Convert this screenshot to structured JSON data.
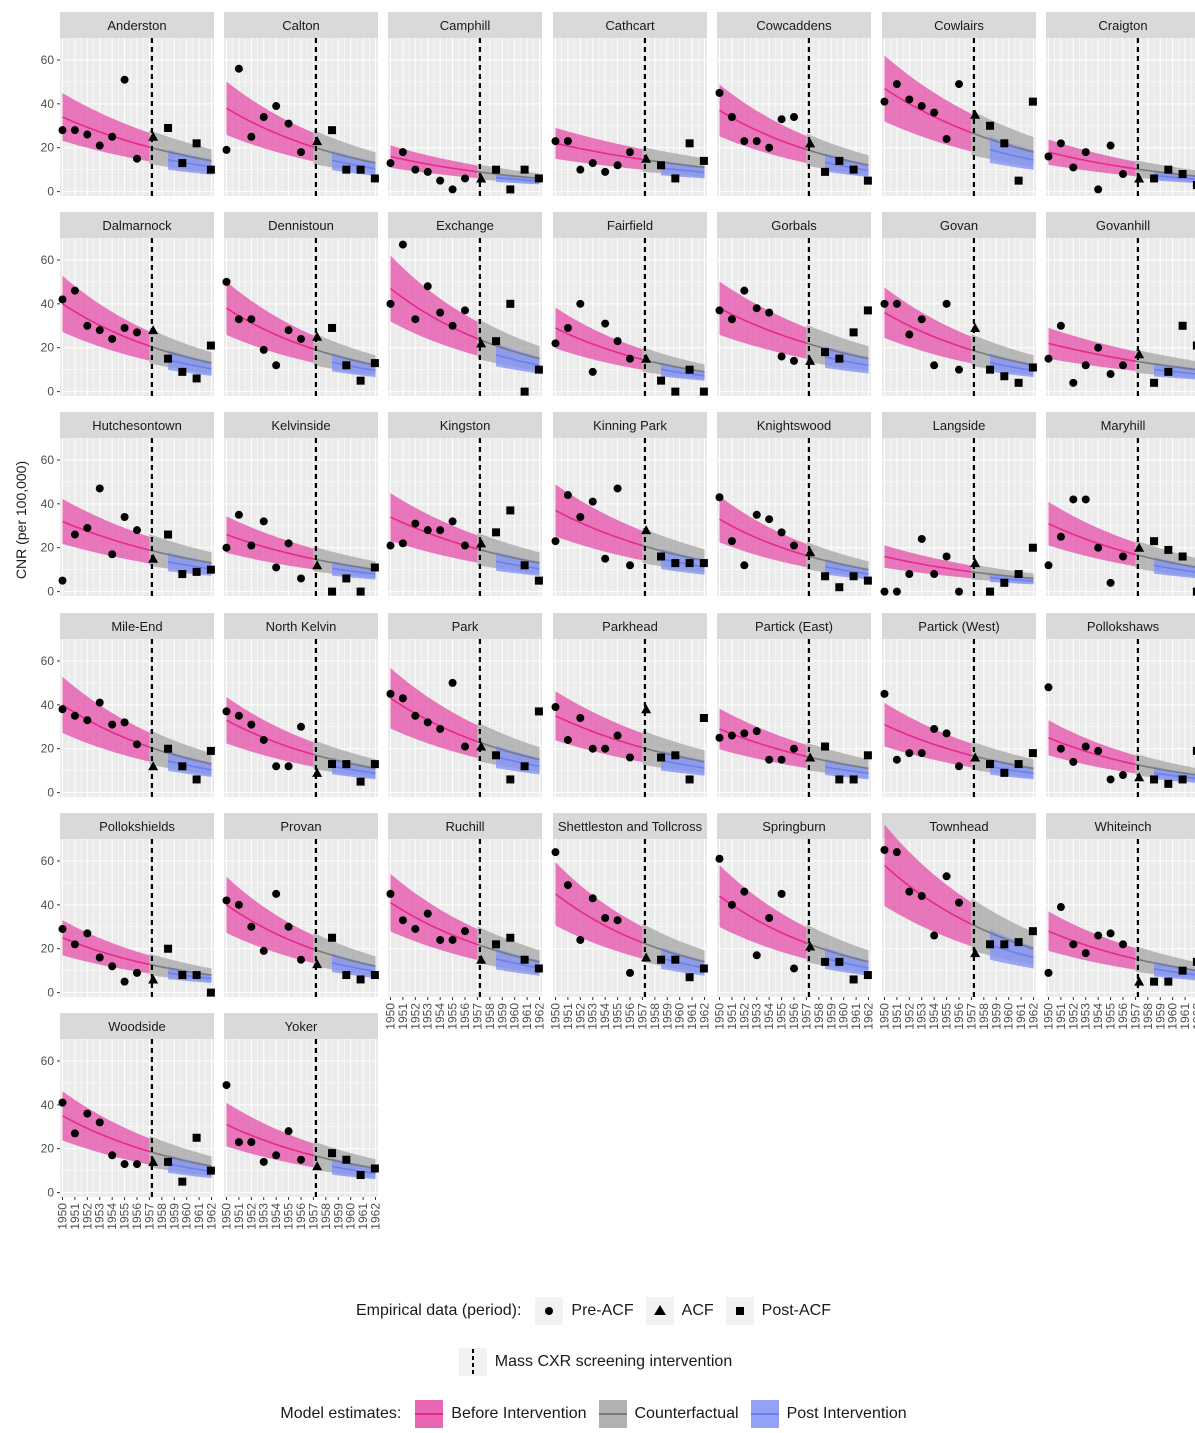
{
  "chart_data": {
    "type": "scatter",
    "ylabel": "CNR (per 100,000)",
    "xlabel": "",
    "ylim": [
      -2,
      70
    ],
    "yticks": [
      0,
      20,
      40,
      60
    ],
    "xlim": [
      1949.8,
      1962.2
    ],
    "xticks": [
      "1950",
      "1951",
      "1952",
      "1953",
      "1954",
      "1955",
      "1956",
      "1957",
      "1958",
      "1959",
      "1960",
      "1961",
      "1962"
    ],
    "intervention_year": 1957.2,
    "colors": {
      "before": "#e7298a",
      "before_band": "#e64ea8",
      "counterfactual": "#8c8c8c",
      "counterfactual_band": "#a6a6a6",
      "post": "#6b7ff0",
      "post_band": "#8394f5",
      "panel_bg": "#ebebeb",
      "strip_bg": "#d9d9d9"
    },
    "panels": [
      {
        "name": "Anderston",
        "pre": [
          28,
          28,
          26,
          21,
          25,
          51,
          15
        ],
        "acf": 25,
        "post": [
          29,
          13,
          22,
          10
        ],
        "m0": 34,
        "m1": 14
      },
      {
        "name": "Calton",
        "pre": [
          19,
          56,
          25,
          34,
          39,
          31,
          18
        ],
        "acf": 23,
        "post": [
          28,
          10,
          10,
          6
        ],
        "m0": 38,
        "m1": 13
      },
      {
        "name": "Camphill",
        "pre": [
          13,
          18,
          10,
          9,
          5,
          1,
          6
        ],
        "acf": 6,
        "post": [
          10,
          1,
          10,
          6
        ],
        "m0": 16,
        "m1": 6
      },
      {
        "name": "Cathcart",
        "pre": [
          23,
          23,
          10,
          13,
          9,
          12,
          18
        ],
        "acf": 15,
        "post": [
          12,
          6,
          22,
          14
        ],
        "m0": 22,
        "m1": 11
      },
      {
        "name": "Cowcaddens",
        "pre": [
          45,
          34,
          23,
          23,
          20,
          33,
          34
        ],
        "acf": 22,
        "post": [
          9,
          14,
          10,
          5
        ],
        "m0": 37,
        "m1": 12
      },
      {
        "name": "Cowlairs",
        "pre": [
          41,
          49,
          42,
          39,
          36,
          24,
          49
        ],
        "acf": 35,
        "post": [
          30,
          22,
          5,
          41
        ],
        "m0": 47,
        "m1": 18
      },
      {
        "name": "Craigton",
        "pre": [
          16,
          22,
          11,
          18,
          1,
          21,
          8
        ],
        "acf": 6,
        "post": [
          6,
          10,
          8,
          3
        ],
        "m0": 18,
        "m1": 7
      },
      {
        "name": "Dalmarnock",
        "pre": [
          42,
          46,
          30,
          28,
          24,
          29,
          27
        ],
        "acf": 28,
        "post": [
          15,
          9,
          6,
          21
        ],
        "m0": 40,
        "m1": 13
      },
      {
        "name": "Dennistoun",
        "pre": [
          50,
          33,
          33,
          19,
          12,
          28,
          24
        ],
        "acf": 25,
        "post": [
          29,
          12,
          5,
          13
        ],
        "m0": 38,
        "m1": 12
      },
      {
        "name": "Exchange",
        "pre": [
          40,
          67,
          33,
          48,
          36,
          30,
          37
        ],
        "acf": 22,
        "post": [
          23,
          40,
          0,
          10
        ],
        "m0": 47,
        "m1": 15
      },
      {
        "name": "Fairfield",
        "pre": [
          22,
          29,
          40,
          9,
          31,
          23,
          15
        ],
        "acf": 15,
        "post": [
          5,
          0,
          10,
          0
        ],
        "m0": 29,
        "m1": 9
      },
      {
        "name": "Gorbals",
        "pre": [
          37,
          33,
          46,
          38,
          36,
          16,
          14
        ],
        "acf": 14,
        "post": [
          18,
          15,
          27,
          37
        ],
        "m0": 38,
        "m1": 15
      },
      {
        "name": "Govan",
        "pre": [
          40,
          40,
          26,
          33,
          12,
          40,
          10
        ],
        "acf": 29,
        "post": [
          10,
          7,
          4,
          11
        ],
        "m0": 36,
        "m1": 12
      },
      {
        "name": "Govanhill",
        "pre": [
          15,
          30,
          4,
          12,
          20,
          8,
          12
        ],
        "acf": 17,
        "post": [
          4,
          9,
          30,
          21
        ],
        "m0": 22,
        "m1": 10
      },
      {
        "name": "Hutchesontown",
        "pre": [
          5,
          26,
          29,
          47,
          17,
          34,
          28
        ],
        "acf": 15,
        "post": [
          26,
          8,
          9,
          10
        ],
        "m0": 32,
        "m1": 13
      },
      {
        "name": "Kelvinside",
        "pre": [
          20,
          35,
          21,
          32,
          11,
          22,
          6
        ],
        "acf": 12,
        "post": [
          0,
          6,
          0,
          11
        ],
        "m0": 26,
        "m1": 10
      },
      {
        "name": "Kingston",
        "pre": [
          21,
          22,
          31,
          28,
          28,
          32,
          21
        ],
        "acf": 22,
        "post": [
          27,
          37,
          12,
          5
        ],
        "m0": 34,
        "m1": 13
      },
      {
        "name": "Kinning Park",
        "pre": [
          23,
          44,
          34,
          41,
          15,
          47,
          12
        ],
        "acf": 28,
        "post": [
          16,
          13,
          13,
          13
        ],
        "m0": 37,
        "m1": 14
      },
      {
        "name": "Knightswood",
        "pre": [
          43,
          23,
          12,
          35,
          33,
          27,
          21
        ],
        "acf": 18,
        "post": [
          7,
          2,
          7,
          5
        ],
        "m0": 33,
        "m1": 10
      },
      {
        "name": "Langside",
        "pre": [
          0,
          0,
          8,
          24,
          8,
          16,
          0
        ],
        "acf": 13,
        "post": [
          0,
          4,
          8,
          20
        ],
        "m0": 16,
        "m1": 6
      },
      {
        "name": "Maryhill",
        "pre": [
          12,
          25,
          42,
          42,
          20,
          4,
          16
        ],
        "acf": 20,
        "post": [
          23,
          19,
          16,
          0
        ],
        "m0": 31,
        "m1": 11
      },
      {
        "name": "Mile-End",
        "pre": [
          38,
          35,
          33,
          41,
          31,
          32,
          22
        ],
        "acf": 12,
        "post": [
          20,
          12,
          6,
          19
        ],
        "m0": 40,
        "m1": 13
      },
      {
        "name": "North Kelvin",
        "pre": [
          37,
          35,
          31,
          24,
          12,
          12,
          30
        ],
        "acf": 9,
        "post": [
          13,
          13,
          5,
          13
        ],
        "m0": 33,
        "m1": 11
      },
      {
        "name": "Park",
        "pre": [
          45,
          43,
          35,
          32,
          29,
          50,
          21
        ],
        "acf": 21,
        "post": [
          17,
          6,
          12,
          37
        ],
        "m0": 43,
        "m1": 15
      },
      {
        "name": "Parkhead",
        "pre": [
          39,
          24,
          34,
          20,
          20,
          26,
          16
        ],
        "acf": 38,
        "post": [
          16,
          17,
          6,
          34
        ],
        "m0": 35,
        "m1": 14
      },
      {
        "name": "Partick (East)",
        "pre": [
          25,
          26,
          27,
          28,
          15,
          15,
          20
        ],
        "acf": 16,
        "post": [
          21,
          6,
          6,
          17
        ],
        "m0": 29,
        "m1": 11
      },
      {
        "name": "Partick (West)",
        "pre": [
          45,
          15,
          18,
          18,
          29,
          27,
          12
        ],
        "acf": 16,
        "post": [
          13,
          9,
          13,
          18
        ],
        "m0": 31,
        "m1": 11
      },
      {
        "name": "Pollokshaws",
        "pre": [
          48,
          20,
          14,
          21,
          19,
          6,
          8
        ],
        "acf": 7,
        "post": [
          6,
          4,
          6,
          19
        ],
        "m0": 25,
        "m1": 8
      },
      {
        "name": "Pollokshields",
        "pre": [
          29,
          22,
          27,
          16,
          12,
          5,
          9
        ],
        "acf": 6,
        "post": [
          20,
          8,
          8,
          0
        ],
        "m0": 25,
        "m1": 8
      },
      {
        "name": "Provan",
        "pre": [
          42,
          40,
          30,
          19,
          45,
          30,
          15
        ],
        "acf": 13,
        "post": [
          25,
          8,
          6,
          8
        ],
        "m0": 40,
        "m1": 12
      },
      {
        "name": "Ruchill",
        "pre": [
          45,
          33,
          29,
          36,
          24,
          24,
          28
        ],
        "acf": 15,
        "post": [
          22,
          25,
          15,
          11
        ],
        "m0": 41,
        "m1": 14
      },
      {
        "name": "Shettleston and Tollcross",
        "pre": [
          64,
          49,
          24,
          43,
          34,
          33,
          9
        ],
        "acf": 16,
        "post": [
          15,
          15,
          7,
          11
        ],
        "m0": 45,
        "m1": 14
      },
      {
        "name": "Springburn",
        "pre": [
          61,
          40,
          46,
          17,
          34,
          45,
          11
        ],
        "acf": 21,
        "post": [
          14,
          14,
          6,
          8
        ],
        "m0": 44,
        "m1": 14
      },
      {
        "name": "Townhead",
        "pre": [
          65,
          64,
          46,
          44,
          26,
          53,
          41
        ],
        "acf": 18,
        "post": [
          22,
          22,
          23,
          28
        ],
        "m0": 58,
        "m1": 20
      },
      {
        "name": "Whiteinch",
        "pre": [
          9,
          39,
          22,
          18,
          26,
          27,
          22
        ],
        "acf": 5,
        "post": [
          5,
          5,
          10,
          14
        ],
        "m0": 28,
        "m1": 10
      },
      {
        "name": "Woodside",
        "pre": [
          41,
          27,
          36,
          32,
          17,
          13,
          13
        ],
        "acf": 14,
        "post": [
          14,
          5,
          25,
          10
        ],
        "m0": 35,
        "m1": 12
      },
      {
        "name": "Yoker",
        "pre": [
          49,
          23,
          23,
          14,
          17,
          28,
          15
        ],
        "acf": 12,
        "post": [
          18,
          15,
          8,
          11
        ],
        "m0": 31,
        "m1": 11
      }
    ]
  },
  "legend": {
    "empirical_title": "Empirical data (period):",
    "pre_label": "Pre-ACF",
    "acf_label": "ACF",
    "post_label": "Post-ACF",
    "intervention_label": "Mass CXR screening intervention",
    "model_title": "Model estimates:",
    "before_label": "Before Intervention",
    "counterfactual_label": "Counterfactual",
    "post_interv_label": "Post Intervention"
  }
}
